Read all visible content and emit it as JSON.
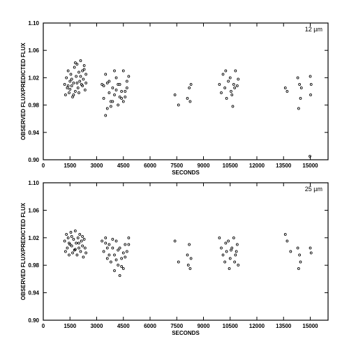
{
  "chart_data": [
    {
      "type": "scatter",
      "panel_label": "12 µm",
      "xlabel": "SECONDS",
      "ylabel": "OBSERVED FLUX/PREDICTED FLUX",
      "xlim": [
        0,
        16000
      ],
      "ylim": [
        0.9,
        1.1
      ],
      "xticks": [
        0,
        1500,
        3000,
        4500,
        6000,
        7500,
        9000,
        10500,
        12000,
        13500,
        15000
      ],
      "yticks": [
        "0.90",
        "0.94",
        "0.98",
        "1.02",
        "1.06",
        "1.10"
      ],
      "marker_glyphs": [
        "o",
        "a"
      ],
      "grid": false,
      "points": [
        [
          1200,
          1.01
        ],
        [
          1250,
          0.995
        ],
        [
          1300,
          1.02
        ],
        [
          1350,
          1.005
        ],
        [
          1400,
          1.03
        ],
        [
          1450,
          0.998
        ],
        [
          1500,
          1.015
        ],
        [
          1550,
          1.025
        ],
        [
          1600,
          1.008
        ],
        [
          1650,
          0.992
        ],
        [
          1700,
          1.012
        ],
        [
          1750,
          1.035
        ],
        [
          1800,
          1.0
        ],
        [
          1850,
          1.022
        ],
        [
          1900,
          1.04
        ],
        [
          1950,
          1.005
        ],
        [
          2000,
          1.028
        ],
        [
          2050,
          1.015
        ],
        [
          2100,
          1.045
        ],
        [
          2150,
          1.01
        ],
        [
          2200,
          1.03
        ],
        [
          2250,
          1.018
        ],
        [
          2300,
          1.038
        ],
        [
          2350,
          1.002
        ],
        [
          2400,
          1.025
        ],
        [
          1600,
          1.018
        ],
        [
          1700,
          0.995
        ],
        [
          1800,
          1.042
        ],
        [
          1900,
          1.012
        ],
        [
          2000,
          0.998
        ],
        [
          2100,
          1.022
        ],
        [
          2200,
          1.008
        ],
        [
          2300,
          1.032
        ],
        [
          2400,
          1.012
        ],
        [
          1400,
          1.008
        ],
        [
          1500,
          1.003
        ],
        [
          3300,
          1.01
        ],
        [
          3400,
          0.99
        ],
        [
          3500,
          1.025
        ],
        [
          3600,
          0.975
        ],
        [
          3700,
          1.015
        ],
        [
          3800,
          0.985
        ],
        [
          3900,
          1.005
        ],
        [
          4000,
          0.995
        ],
        [
          4100,
          1.02
        ],
        [
          4200,
          0.98
        ],
        [
          4300,
          1.01
        ],
        [
          4400,
          0.99
        ],
        [
          4500,
          1.03
        ],
        [
          4600,
          1.0
        ],
        [
          4700,
          1.015
        ],
        [
          3500,
          0.965
        ],
        [
          3700,
          0.998
        ],
        [
          3900,
          0.985
        ],
        [
          4100,
          1.002
        ],
        [
          4300,
          0.992
        ],
        [
          4500,
          0.985
        ],
        [
          4700,
          1.005
        ],
        [
          3400,
          1.008
        ],
        [
          3600,
          1.012
        ],
        [
          3800,
          0.978
        ],
        [
          4000,
          1.03
        ],
        [
          4200,
          1.01
        ],
        [
          4400,
          1.0
        ],
        [
          4600,
          0.992
        ],
        [
          4800,
          1.022
        ],
        [
          7400,
          0.995
        ],
        [
          7600,
          0.98
        ],
        [
          8100,
          0.99
        ],
        [
          8200,
          1.005
        ],
        [
          8300,
          1.01
        ],
        [
          8250,
          0.985
        ],
        [
          9900,
          1.01
        ],
        [
          10000,
          0.998
        ],
        [
          10100,
          1.025
        ],
        [
          10200,
          1.005
        ],
        [
          10300,
          0.99
        ],
        [
          10400,
          1.015
        ],
        [
          10500,
          1.02
        ],
        [
          10600,
          0.995
        ],
        [
          10700,
          1.01
        ],
        [
          10800,
          1.03
        ],
        [
          10900,
          1.008
        ],
        [
          10950,
          1.018
        ],
        [
          10250,
          1.03
        ],
        [
          10550,
          1.0
        ],
        [
          10650,
          0.978
        ],
        [
          10750,
          1.005
        ],
        [
          13600,
          1.005
        ],
        [
          13700,
          1.0
        ],
        [
          14300,
          1.02
        ],
        [
          14400,
          1.01
        ],
        [
          14450,
          0.99
        ],
        [
          14500,
          1.005
        ],
        [
          14350,
          0.975
        ],
        [
          15000,
          1.022
        ],
        [
          15050,
          1.01
        ],
        [
          15020,
          0.995
        ],
        [
          14980,
          0.905
        ]
      ]
    },
    {
      "type": "scatter",
      "panel_label": "25 µm",
      "xlabel": "SECONDS",
      "ylabel": "OBSERVED FLUX/PREDICTED FLUX",
      "xlim": [
        0,
        16000
      ],
      "ylim": [
        0.9,
        1.1
      ],
      "xticks": [
        0,
        1500,
        3000,
        4500,
        6000,
        7500,
        9000,
        10500,
        12000,
        13500,
        15000
      ],
      "yticks": [
        "0.90",
        "0.94",
        "0.98",
        "1.02",
        "1.06",
        "1.10"
      ],
      "marker_glyphs": [
        "o",
        "a"
      ],
      "grid": false,
      "points": [
        [
          1200,
          1.015
        ],
        [
          1250,
          1.0
        ],
        [
          1300,
          1.025
        ],
        [
          1350,
          1.005
        ],
        [
          1400,
          1.02
        ],
        [
          1450,
          0.995
        ],
        [
          1500,
          1.01
        ],
        [
          1550,
          1.028
        ],
        [
          1600,
          1.008
        ],
        [
          1650,
          0.998
        ],
        [
          1700,
          1.018
        ],
        [
          1750,
          1.002
        ],
        [
          1800,
          1.03
        ],
        [
          1850,
          1.012
        ],
        [
          1900,
          0.995
        ],
        [
          1950,
          1.02
        ],
        [
          2000,
          1.005
        ],
        [
          2050,
          1.025
        ],
        [
          2100,
          1.0
        ],
        [
          2150,
          1.015
        ],
        [
          2200,
          1.008
        ],
        [
          2250,
          0.992
        ],
        [
          2300,
          1.018
        ],
        [
          2350,
          1.005
        ],
        [
          2400,
          0.998
        ],
        [
          1600,
          1.022
        ],
        [
          1800,
          1.003
        ],
        [
          2000,
          1.012
        ],
        [
          2200,
          1.022
        ],
        [
          1450,
          1.012
        ],
        [
          3300,
          1.015
        ],
        [
          3400,
          1.0
        ],
        [
          3500,
          1.02
        ],
        [
          3600,
          0.99
        ],
        [
          3700,
          1.01
        ],
        [
          3800,
          0.985
        ],
        [
          3900,
          1.005
        ],
        [
          4000,
          0.995
        ],
        [
          4100,
          1.015
        ],
        [
          4200,
          0.98
        ],
        [
          4300,
          1.005
        ],
        [
          4400,
          0.99
        ],
        [
          4500,
          0.975
        ],
        [
          4600,
          1.01
        ],
        [
          4700,
          1.0
        ],
        [
          4300,
          0.965
        ],
        [
          3500,
          1.012
        ],
        [
          3700,
          0.995
        ],
        [
          3900,
          1.018
        ],
        [
          4100,
          0.988
        ],
        [
          4200,
          1.002
        ],
        [
          4400,
          0.978
        ],
        [
          4600,
          0.992
        ],
        [
          4800,
          1.02
        ],
        [
          4800,
          1.01
        ],
        [
          3600,
          1.005
        ],
        [
          4000,
          0.972
        ],
        [
          4500,
          0.998
        ],
        [
          7400,
          1.015
        ],
        [
          7600,
          0.985
        ],
        [
          8100,
          0.995
        ],
        [
          8200,
          1.01
        ],
        [
          8300,
          0.99
        ],
        [
          8150,
          0.98
        ],
        [
          8250,
          0.975
        ],
        [
          9900,
          1.02
        ],
        [
          10000,
          1.005
        ],
        [
          10100,
          0.995
        ],
        [
          10200,
          0.985
        ],
        [
          10300,
          1.0
        ],
        [
          10400,
          1.015
        ],
        [
          10500,
          0.99
        ],
        [
          10600,
          1.005
        ],
        [
          10700,
          1.02
        ],
        [
          10800,
          0.995
        ],
        [
          10900,
          1.01
        ],
        [
          10950,
          0.98
        ],
        [
          10250,
          1.012
        ],
        [
          10450,
          0.975
        ],
        [
          10550,
          1.002
        ],
        [
          10750,
          0.985
        ],
        [
          10850,
          1.0
        ],
        [
          13600,
          1.025
        ],
        [
          13700,
          1.015
        ],
        [
          13900,
          1.0
        ],
        [
          14300,
          1.005
        ],
        [
          14400,
          0.995
        ],
        [
          14450,
          0.985
        ],
        [
          14350,
          0.975
        ],
        [
          15000,
          1.005
        ],
        [
          15050,
          0.998
        ]
      ]
    }
  ]
}
